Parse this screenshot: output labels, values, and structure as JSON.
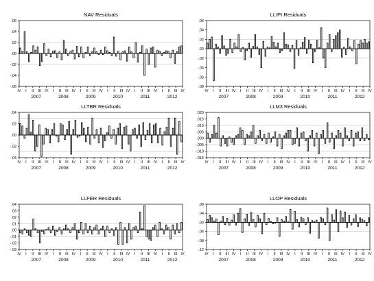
{
  "chart_data": [
    {
      "type": "bar",
      "title": "NAV Residuals",
      "ylim": [
        -0.06,
        0.06
      ],
      "yticks": [
        ".06",
        ".04",
        ".02",
        ".00",
        "-.02",
        "-.04",
        "-.06"
      ],
      "ytick_values": [
        0.06,
        0.04,
        0.02,
        0.0,
        -0.02,
        -0.04,
        -0.06
      ],
      "gridlines": [
        0.02,
        0.0,
        -0.02
      ],
      "quarter_labels": [
        "IV",
        "I",
        "II",
        "III",
        "IV",
        "I",
        "II",
        "III",
        "IV",
        "I",
        "II",
        "III",
        "IV",
        "I",
        "II",
        "III",
        "IV",
        "I",
        "II",
        "III",
        "IV",
        "I",
        "II",
        "III",
        "IV"
      ],
      "years": [
        "2007",
        "2008",
        "2009",
        "2010",
        "2011",
        "2012"
      ],
      "values": [
        0.01,
        0.004,
        0.04,
        0.003,
        -0.015,
        0.002,
        0.014,
        0.006,
        0.012,
        -0.022,
        -0.015,
        0.018,
        -0.004,
        0.008,
        -0.006,
        0.004,
        0.005,
        -0.008,
        0.003,
        -0.012,
        0.024,
        0.008,
        -0.004,
        0.003,
        0.006,
        -0.01,
        0.013,
        -0.006,
        0.012,
        -0.008,
        0.002,
        0.012,
        -0.004,
        0.003,
        0.01,
        0.003,
        -0.002,
        0.006,
        -0.002,
        0.012,
        0.005,
        0.002,
        -0.004,
        0.03,
        -0.005,
        0.004,
        -0.012,
        0.003,
        0.005,
        -0.014,
        0.012,
        0.003,
        -0.008,
        0.02,
        -0.016,
        0.002,
        0.014,
        -0.04,
        0.008,
        -0.02,
        0.01,
        0.012,
        -0.025,
        0.006,
        0.004,
        -0.004,
        0.002,
        0.005,
        0.004,
        -0.008,
        0.006,
        -0.018,
        0.003,
        0.012,
        0.014
      ]
    },
    {
      "type": "bar",
      "title": "LLIPI Residuals",
      "ylim": [
        -0.08,
        0.06
      ],
      "yticks": [
        ".06",
        ".04",
        ".02",
        ".00",
        "-.02",
        "-.04",
        "-.06",
        "-.08"
      ],
      "ytick_values": [
        0.06,
        0.04,
        0.02,
        0.0,
        -0.02,
        -0.04,
        -0.06,
        -0.08
      ],
      "gridlines": [
        0.02,
        0.0,
        -0.02
      ],
      "quarter_labels": [
        "IV",
        "I",
        "II",
        "III",
        "IV",
        "I",
        "II",
        "III",
        "IV",
        "I",
        "II",
        "III",
        "IV",
        "I",
        "II",
        "III",
        "IV",
        "I",
        "II",
        "III",
        "IV",
        "I",
        "II",
        "III",
        "IV"
      ],
      "years": [
        "2007",
        "2008",
        "2009",
        "2010",
        "2011",
        "2012"
      ],
      "values": [
        0.012,
        0.02,
        0.025,
        -0.068,
        0.01,
        0.004,
        -0.01,
        0.028,
        0.006,
        -0.014,
        -0.01,
        0.02,
        -0.008,
        0.012,
        0.004,
        0.03,
        -0.006,
        0.003,
        -0.024,
        -0.004,
        0.012,
        -0.018,
        0.005,
        0.03,
        0.004,
        -0.012,
        -0.04,
        0.016,
        -0.016,
        0.004,
        0.002,
        0.026,
        0.014,
        0.004,
        0.012,
        -0.008,
        -0.004,
        0.034,
        0.01,
        0.008,
        -0.006,
        0.007,
        -0.042,
        0.018,
        -0.014,
        0.002,
        0.014,
        0.024,
        -0.01,
        0.018,
        0.01,
        -0.03,
        -0.006,
        0.018,
        0.002,
        0.045,
        -0.02,
        -0.04,
        0.012,
        0.03,
        -0.006,
        0.02,
        0.028,
        0.034,
        0.04,
        -0.018,
        0.003,
        -0.012,
        0.022,
        0.004,
        -0.004,
        0.018,
        -0.032,
        0.01,
        0.018,
        0.012,
        0.02,
        0.012,
        0.015
      ]
    },
    {
      "type": "bar",
      "title": "LLTBR Residuals",
      "ylim": [
        -0.04,
        0.04
      ],
      "yticks": [
        ".04",
        ".02",
        ".00",
        "-.02",
        "-.04"
      ],
      "ytick_values": [
        0.04,
        0.02,
        0.0,
        -0.02,
        -0.04
      ],
      "gridlines": [
        0.03,
        0.0,
        -0.03
      ],
      "quarter_labels": [
        "IV",
        "I",
        "II",
        "III",
        "IV",
        "I",
        "II",
        "III",
        "IV",
        "I",
        "II",
        "III",
        "IV",
        "I",
        "II",
        "III",
        "IV",
        "I",
        "II",
        "III",
        "IV",
        "I",
        "II",
        "III",
        "IV"
      ],
      "years": [
        "2007",
        "2008",
        "2009",
        "2010",
        "2011",
        "2012"
      ],
      "values": [
        0.02,
        0.016,
        -0.006,
        0.012,
        0.036,
        0.005,
        0.026,
        -0.028,
        -0.02,
        0.018,
        -0.038,
        -0.016,
        0.012,
        0.01,
        -0.014,
        0.01,
        0.02,
        -0.002,
        -0.012,
        0.02,
        0.018,
        -0.008,
        0.01,
        0.024,
        -0.034,
        0.01,
        0.026,
        -0.004,
        -0.002,
        0.022,
        0.012,
        -0.012,
        0.014,
        -0.016,
        0.03,
        -0.006,
        0.01,
        -0.014,
        0.012,
        -0.022,
        -0.01,
        0.004,
        0.016,
        -0.006,
        0.01,
        -0.016,
        0.012,
        0.02,
        -0.024,
        0.014,
        0.016,
        -0.016,
        -0.028,
        0.01,
        0.012,
        -0.006,
        0.018,
        -0.02,
        0.022,
        -0.008,
        0.008,
        0.02,
        -0.014,
        0.018,
        0.02,
        -0.014,
        0.012,
        -0.018,
        0.006,
        0.014,
        0.03,
        -0.02,
        0.012,
        0.03,
        -0.034,
        0.024,
        -0.012
      ]
    },
    {
      "type": "bar",
      "title": "LLM3 Residuals",
      "ylim": [
        -0.015,
        0.02
      ],
      "yticks": [
        ".020",
        ".015",
        ".010",
        ".005",
        ".000",
        "-.005",
        "-.010",
        "-.015"
      ],
      "ytick_values": [
        0.02,
        0.015,
        0.01,
        0.005,
        0.0,
        -0.005,
        -0.01,
        -0.015
      ],
      "gridlines": [
        0.01,
        0.005,
        0.0,
        -0.005,
        -0.01
      ],
      "quarter_labels": [
        "IV",
        "I",
        "II",
        "III",
        "IV",
        "I",
        "II",
        "III",
        "IV",
        "I",
        "II",
        "III",
        "IV",
        "I",
        "II",
        "III",
        "IV",
        "I",
        "II",
        "III",
        "IV",
        "I",
        "II",
        "III",
        "IV"
      ],
      "years": [
        "2007",
        "2008",
        "2009",
        "2010",
        "2011",
        "2012"
      ],
      "values": [
        0.004,
        -0.003,
        0.003,
        0.01,
        0.004,
        0.016,
        -0.006,
        0.002,
        -0.004,
        -0.006,
        0.001,
        -0.003,
        -0.005,
        0.002,
        0.003,
        0.008,
        0.006,
        -0.005,
        0.003,
        0.002,
        0.005,
        0.01,
        -0.004,
        0.002,
        0.006,
        -0.002,
        0.003,
        -0.004,
        0.004,
        -0.003,
        0.001,
        0.005,
        -0.006,
        0.003,
        -0.008,
        0.002,
        0.004,
        0.006,
        0.006,
        -0.005,
        -0.004,
        0.008,
        -0.006,
        0.004,
        0.005,
        -0.002,
        -0.01,
        0.002,
        0.006,
        -0.006,
        0.004,
        -0.012,
        0.003,
        0.006,
        -0.004,
        0.012,
        -0.003,
        0.004,
        -0.008,
        0.002,
        0.006,
        0.004,
        -0.006,
        0.008,
        0.002,
        -0.002,
        0.006,
        -0.006,
        0.004,
        0.005,
        -0.002,
        0.008,
        -0.002,
        0.003,
        -0.001
      ]
    },
    {
      "type": "bar",
      "title": "LLFER Residuals",
      "ylim": [
        -0.03,
        0.04
      ],
      "yticks": [
        ".04",
        ".03",
        ".02",
        ".01",
        ".00",
        "-.01",
        "-.02",
        "-.03"
      ],
      "ytick_values": [
        0.04,
        0.03,
        0.02,
        0.01,
        0.0,
        -0.01,
        -0.02,
        -0.03
      ],
      "gridlines": [
        0.01,
        0.0,
        -0.01
      ],
      "quarter_labels": [
        "IV",
        "I",
        "II",
        "III",
        "IV",
        "I",
        "II",
        "III",
        "IV",
        "I",
        "II",
        "III",
        "IV",
        "I",
        "II",
        "III",
        "IV",
        "I",
        "II",
        "III",
        "IV",
        "I",
        "II",
        "III",
        "IV"
      ],
      "years": [
        "2007",
        "2008",
        "2009",
        "2010",
        "2011",
        "2012"
      ],
      "values": [
        -0.004,
        -0.006,
        0.002,
        -0.004,
        -0.008,
        -0.01,
        0.017,
        0.002,
        -0.004,
        -0.02,
        -0.002,
        -0.006,
        0.001,
        0.004,
        -0.004,
        0.006,
        -0.008,
        -0.002,
        0.004,
        -0.006,
        0.002,
        0.008,
        0.002,
        -0.004,
        0.004,
        0.01,
        -0.014,
        -0.004,
        0.012,
        -0.006,
        0.01,
        -0.004,
        0.006,
        -0.006,
        0.004,
        0.008,
        -0.006,
        0.002,
        0.006,
        -0.01,
        0.006,
        -0.004,
        0.002,
        -0.008,
        0.004,
        -0.022,
        0.012,
        -0.022,
        0.004,
        -0.02,
        0.01,
        -0.014,
        0.004,
        0.006,
        -0.004,
        0.028,
        0.002,
        0.038,
        -0.01,
        -0.014,
        -0.016,
        0.004,
        0.008,
        -0.01,
        0.012,
        0.002,
        -0.006,
        0.008,
        0.004,
        -0.014,
        0.008,
        -0.006,
        0.01,
        -0.004,
        0.012
      ]
    },
    {
      "type": "bar",
      "title": "LLOP Residuals",
      "ylim": [
        -0.12,
        0.08
      ],
      "yticks": [
        ".08",
        ".04",
        ".00",
        "-.04",
        "-.08",
        "-.12"
      ],
      "ytick_values": [
        0.08,
        0.04,
        0.0,
        -0.04,
        -0.08,
        -0.12
      ],
      "gridlines": [
        0.04,
        0.0,
        -0.04
      ],
      "quarter_labels": [
        "IV",
        "I",
        "II",
        "III",
        "IV",
        "I",
        "II",
        "III",
        "IV",
        "I",
        "II",
        "III",
        "IV",
        "I",
        "II",
        "III",
        "IV",
        "I",
        "II",
        "III",
        "IV",
        "I",
        "II",
        "III",
        "IV"
      ],
      "years": [
        "2007",
        "2008",
        "2009",
        "2010",
        "2011",
        "2012"
      ],
      "values": [
        0.012,
        0.03,
        0.02,
        0.006,
        0.015,
        -0.055,
        0.004,
        0.026,
        -0.01,
        0.018,
        -0.012,
        0.01,
        0.034,
        -0.012,
        0.04,
        0.06,
        -0.045,
        0.016,
        0.036,
        -0.014,
        0.044,
        0.012,
        -0.02,
        0.03,
        0.016,
        -0.05,
        0.04,
        -0.01,
        0.018,
        0.004,
        -0.006,
        -0.004,
        0.02,
        -0.062,
        0.012,
        0.006,
        0.026,
        0.002,
        0.058,
        -0.03,
        0.048,
        0.012,
        -0.02,
        0.022,
        0.016,
        -0.01,
        0.02,
        -0.048,
        0.008,
        0.004,
        0.01,
        -0.07,
        0.022,
        0.016,
        -0.01,
        0.064,
        -0.08,
        0.034,
        0.01,
        0.056,
        -0.04,
        0.05,
        0.02,
        0.046,
        -0.022,
        0.03,
        -0.012,
        0.016,
        0.034,
        -0.018,
        0.02,
        0.014,
        0.008,
        -0.016,
        0.02
      ]
    }
  ]
}
